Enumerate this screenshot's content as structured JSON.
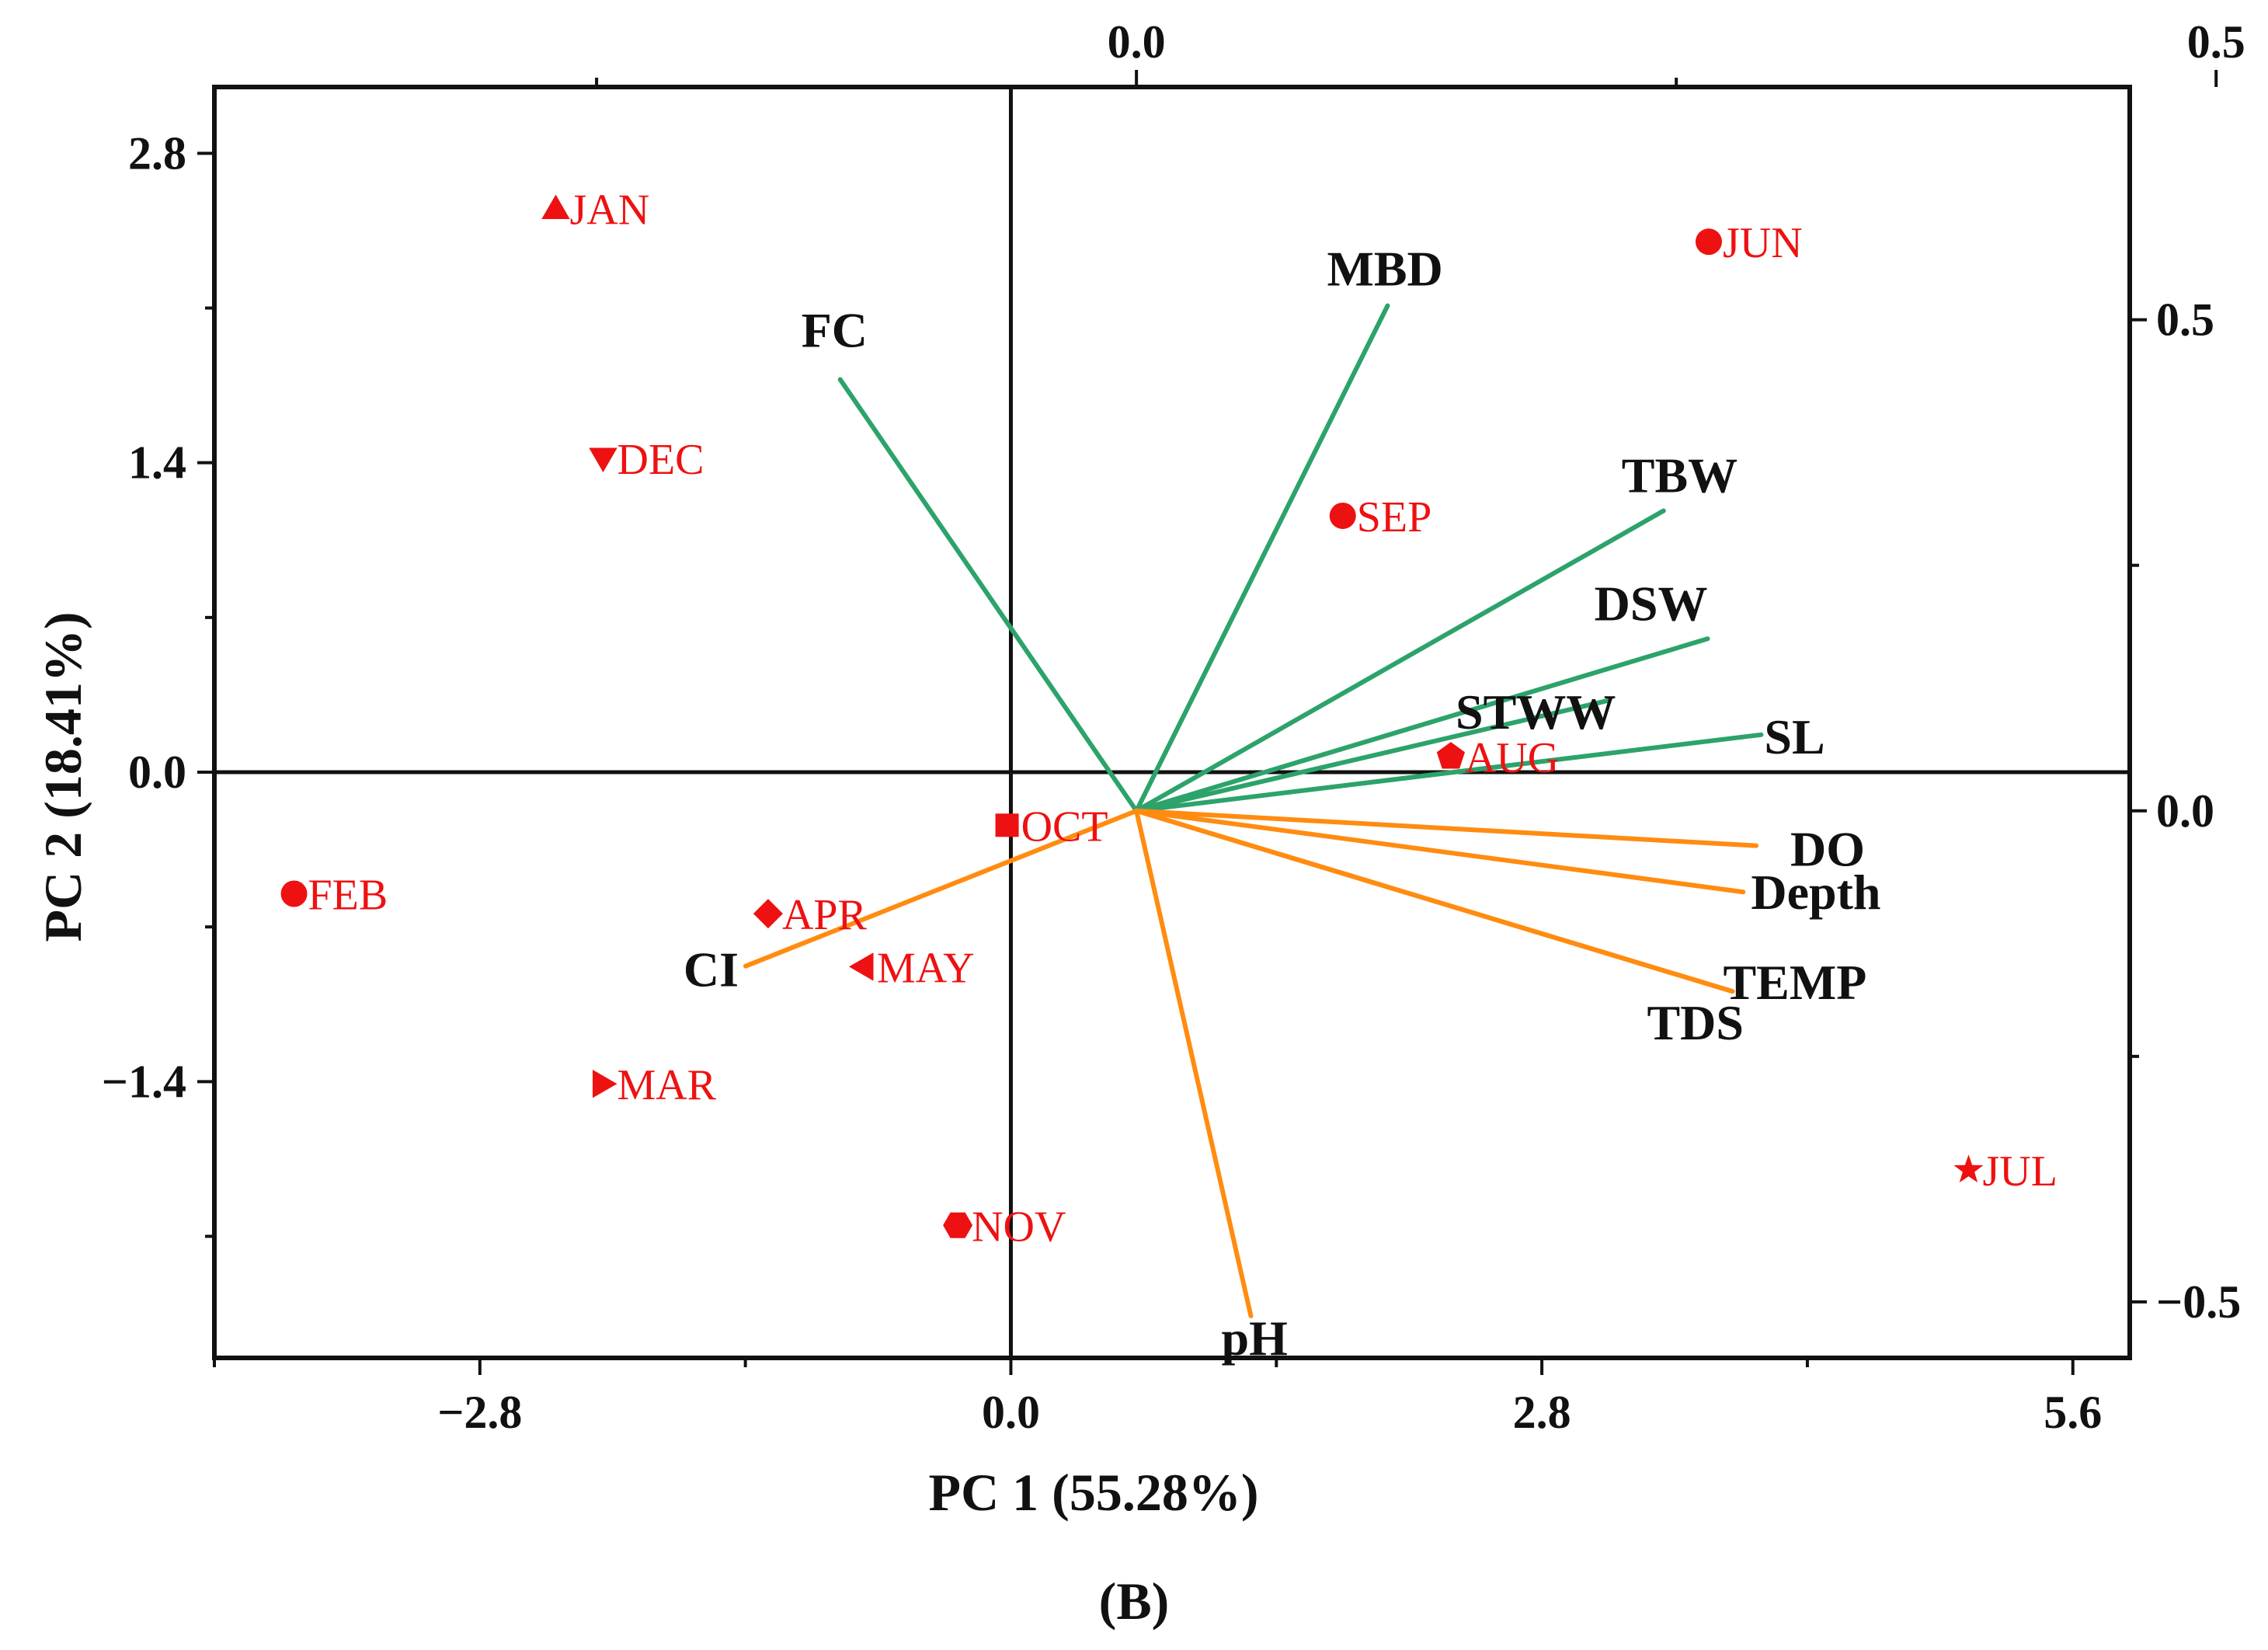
{
  "chart_data": {
    "type": "scatter",
    "subtype": "pca-biplot",
    "caption": "(B)",
    "xlabel": "PC 1 (55.28%)",
    "ylabel": "PC 2 (18.41%)",
    "xlim": [
      -4.2,
      5.9
    ],
    "ylim": [
      -2.65,
      3.1
    ],
    "x_ticks": [
      -2.8,
      0.0,
      2.8,
      5.6
    ],
    "x_tick_labels": [
      "−2.8",
      "0.0",
      "2.8",
      "5.6"
    ],
    "y_ticks": [
      -1.4,
      0.0,
      1.4,
      2.8
    ],
    "y_tick_labels": [
      "−1.4",
      "0.0",
      "1.4",
      "2.8"
    ],
    "top_axis": {
      "lim": [
        -0.427,
        0.46
      ],
      "ticks": [
        0.0,
        0.5
      ],
      "tick_labels": [
        "0.0",
        "0.5"
      ]
    },
    "right_axis": {
      "lim": [
        -0.557,
        0.737
      ],
      "ticks": [
        -0.5,
        0.0,
        0.5
      ],
      "tick_labels": [
        "−0.5",
        "0.0",
        "0.5"
      ]
    },
    "colors": {
      "scores": "#ee1111",
      "positive_loadings": "#2ca36b",
      "negative_loadings": "#ff8c10",
      "axis": "#111111"
    },
    "scores": [
      {
        "label": "JAN",
        "marker": "triangle-up",
        "x": -2.4,
        "y": 2.55
      },
      {
        "label": "JUN",
        "marker": "circle",
        "x": 3.68,
        "y": 2.4
      },
      {
        "label": "DEC",
        "marker": "triangle-down",
        "x": -2.15,
        "y": 1.42
      },
      {
        "label": "SEP",
        "marker": "circle",
        "x": 1.75,
        "y": 1.16
      },
      {
        "label": "AUG",
        "marker": "pentagon",
        "x": 2.32,
        "y": 0.07
      },
      {
        "label": "OCT",
        "marker": "square",
        "x": -0.02,
        "y": -0.24
      },
      {
        "label": "FEB",
        "marker": "circle",
        "x": -3.78,
        "y": -0.55
      },
      {
        "label": "APR",
        "marker": "diamond",
        "x": -1.28,
        "y": -0.64
      },
      {
        "label": "MAY",
        "marker": "triangle-left",
        "x": -0.78,
        "y": -0.88
      },
      {
        "label": "MAR",
        "marker": "triangle-right",
        "x": -2.15,
        "y": -1.41
      },
      {
        "label": "NOV",
        "marker": "hexagon",
        "x": -0.28,
        "y": -2.05
      },
      {
        "label": "JUL",
        "marker": "star",
        "x": 5.05,
        "y": -1.8
      }
    ],
    "loadings": [
      {
        "label": "FC",
        "group": "positive",
        "x": -0.1372,
        "y": 0.4392
      },
      {
        "label": "MBD",
        "group": "positive",
        "x": 0.1163,
        "y": 0.5143
      },
      {
        "label": "TBW",
        "group": "positive",
        "x": 0.2441,
        "y": 0.3055
      },
      {
        "label": "DSW",
        "group": "positive",
        "x": 0.2645,
        "y": 0.1752
      },
      {
        "label": "STWW",
        "group": "positive",
        "x": 0.2184,
        "y": 0.1123
      },
      {
        "label": "SL",
        "group": "positive",
        "x": 0.2893,
        "y": 0.0775
      },
      {
        "label": "DO",
        "group": "negative",
        "x": 0.287,
        "y": -0.0355
      },
      {
        "label": "Depth",
        "group": "negative",
        "x": 0.281,
        "y": -0.0826
      },
      {
        "label": "TEMP",
        "group": "negative",
        "x": 0.276,
        "y": -0.1838
      },
      {
        "label": "TDS",
        "group": "negative",
        "x": 0.276,
        "y": -0.1838
      },
      {
        "label": "CI",
        "group": "negative",
        "x": -0.181,
        "y": -0.1581
      },
      {
        "label": "pH",
        "group": "negative",
        "x": 0.053,
        "y": -0.5143
      }
    ]
  }
}
